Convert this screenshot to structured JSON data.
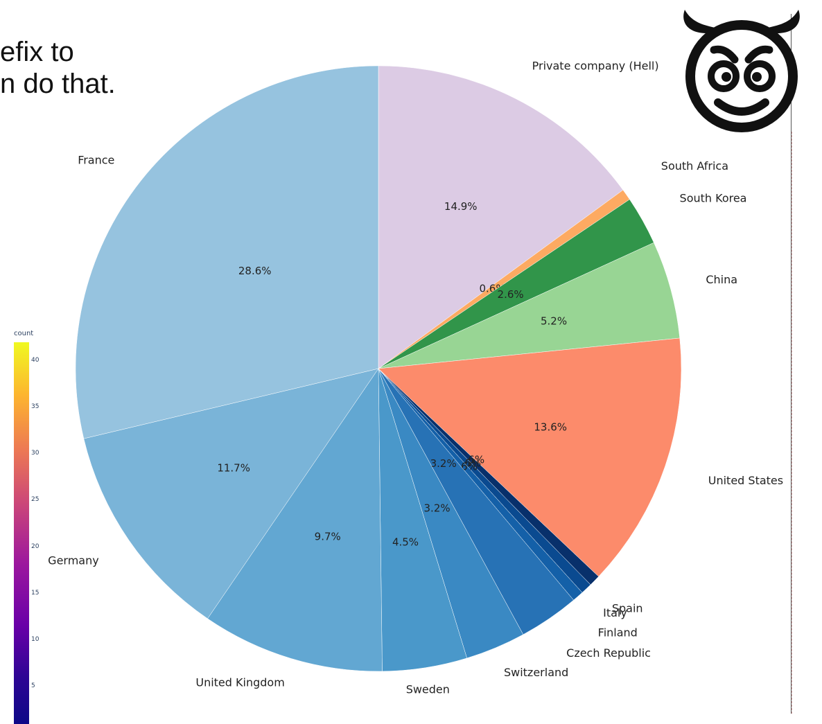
{
  "overlay_text": [
    "efix to",
    "n do that."
  ],
  "colorbar": {
    "title": "count",
    "ticks": [
      "40",
      "35",
      "30",
      "25",
      "20",
      "15",
      "10",
      "5"
    ],
    "tick_values": [
      40,
      35,
      30,
      25,
      20,
      15,
      10,
      5
    ],
    "range": [
      1,
      42
    ]
  },
  "devil_emoji_icon": "smiling-face-with-horns-icon",
  "chart_data": {
    "type": "pie",
    "title": "",
    "start_angle_deg": 0,
    "direction": "clockwise",
    "slices": [
      {
        "label": "Private company (Hell)",
        "percent": 14.9,
        "color": "#dccbe4"
      },
      {
        "label": "South Africa",
        "percent": 0.6,
        "color": "#fdaa62"
      },
      {
        "label": "South Korea",
        "percent": 2.6,
        "color": "#31954a"
      },
      {
        "label": "China",
        "percent": 5.2,
        "color": "#98d594"
      },
      {
        "label": "United States",
        "percent": 13.6,
        "color": "#fc8b6b"
      },
      {
        "label": "Spain",
        "percent": 0.6,
        "color": "#08306b"
      },
      {
        "label": "Italy",
        "percent": 0.6,
        "color": "#0a4a90"
      },
      {
        "label": "Finland",
        "percent": 0.6,
        "color": "#1460a8"
      },
      {
        "label": "Czech Republic",
        "percent": 3.2,
        "color": "#2772b5"
      },
      {
        "label": "Switzerland",
        "percent": 3.2,
        "color": "#3a89c3"
      },
      {
        "label": "Sweden",
        "percent": 4.5,
        "color": "#4a98ca"
      },
      {
        "label": "United Kingdom",
        "percent": 9.7,
        "color": "#62a7d2"
      },
      {
        "label": "Germany",
        "percent": 11.7,
        "color": "#7ab4d8"
      },
      {
        "label": "France",
        "percent": 28.6,
        "color": "#96c3df"
      }
    ]
  }
}
